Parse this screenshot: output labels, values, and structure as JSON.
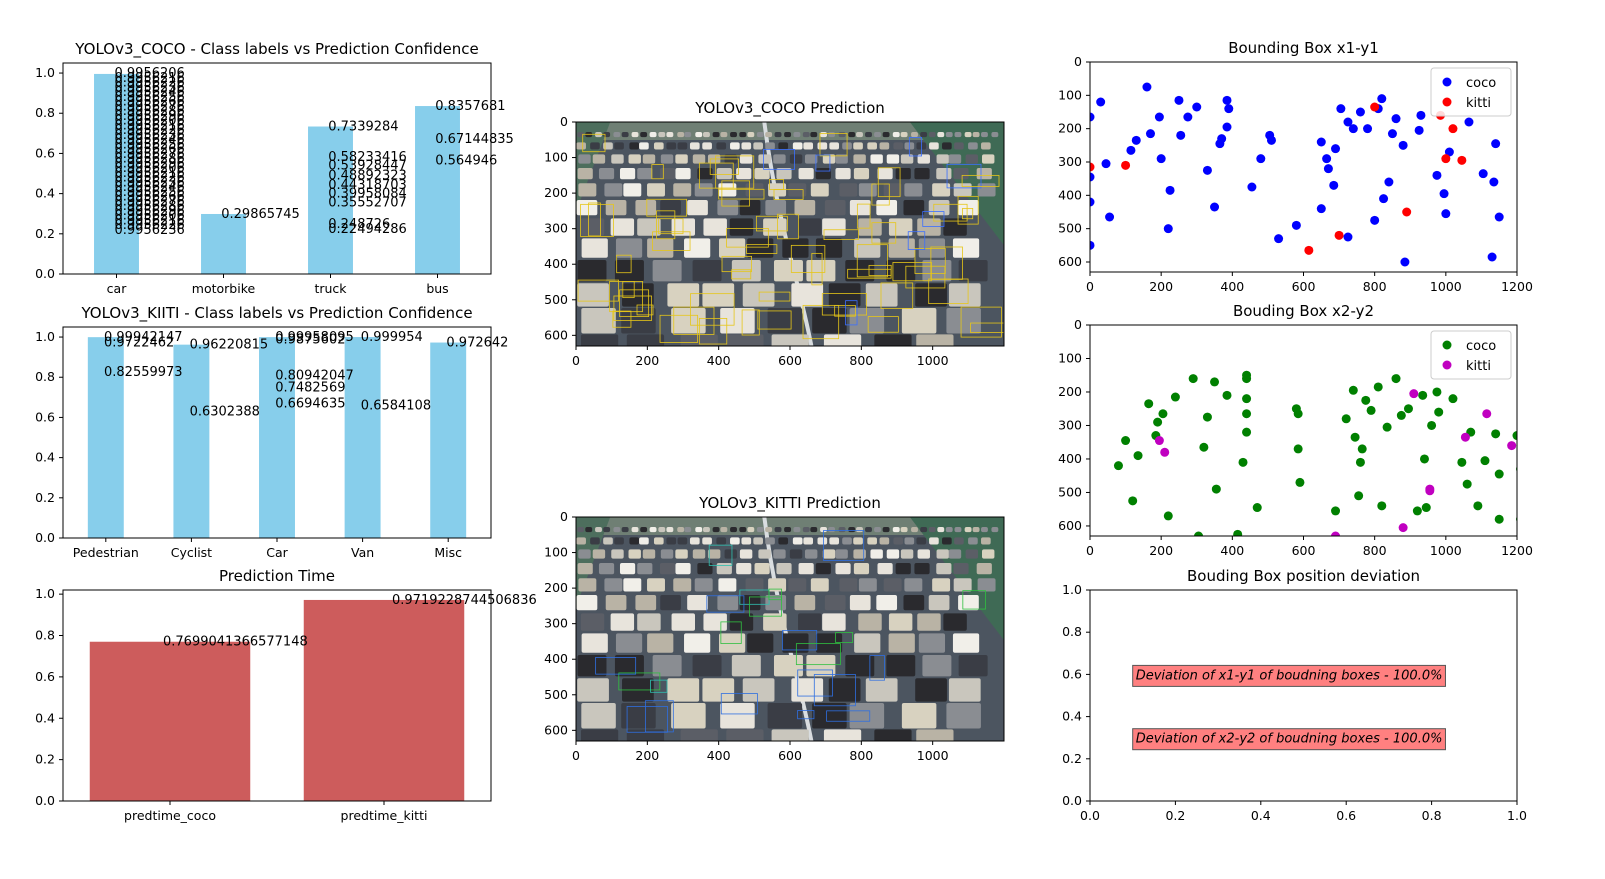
{
  "chart_data": [
    {
      "id": "coco_conf",
      "type": "bar",
      "title": "YOLOv3_COCO - Class labels vs Prediction Confidence",
      "categories": [
        "car",
        "motorbike",
        "truck",
        "bus"
      ],
      "values": [
        0.9956,
        0.29865745,
        0.7339284,
        0.8357681
      ],
      "ylim": [
        0,
        1.05
      ],
      "yticks": [
        "0.0",
        "0.2",
        "0.4",
        "0.6",
        "0.8",
        "1.0"
      ],
      "color": "#87ceeb",
      "data_labels": [
        {
          "category": "truck",
          "text": "0.7339284",
          "y": 0.7339284
        },
        {
          "category": "truck",
          "text": "0.58233416",
          "y": 0.58233416
        },
        {
          "category": "truck",
          "text": "0.53928447",
          "y": 0.53928447
        },
        {
          "category": "truck",
          "text": "0.48892323",
          "y": 0.48892323
        },
        {
          "category": "truck",
          "text": "0.44318703",
          "y": 0.44318703
        },
        {
          "category": "truck",
          "text": "0.39958084",
          "y": 0.39958084
        },
        {
          "category": "truck",
          "text": "0.35552707",
          "y": 0.35552707
        },
        {
          "category": "truck",
          "text": "0.248726",
          "y": 0.248726
        },
        {
          "category": "truck",
          "text": "0.22494286",
          "y": 0.22494286
        },
        {
          "category": "motorbike",
          "text": "0.29865745",
          "y": 0.29865745
        },
        {
          "category": "bus",
          "text": "0.8357681",
          "y": 0.8357681
        },
        {
          "category": "bus",
          "text": "0.67144835",
          "y": 0.67144835
        },
        {
          "category": "bus",
          "text": "0.564946",
          "y": 0.564946
        }
      ],
      "car_label_stack": {
        "values_top": 1.0,
        "values_bottom": 0.22,
        "count": 34
      }
    },
    {
      "id": "kitti_conf",
      "type": "bar",
      "title": "YOLOv3_KIITI - Class labels vs Prediction Confidence",
      "categories": [
        "Pedestrian",
        "Cyclist",
        "Car",
        "Van",
        "Misc"
      ],
      "values": [
        0.99942147,
        0.96220815,
        0.99958095,
        0.999954,
        0.972642
      ],
      "ylim": [
        0,
        1.05
      ],
      "yticks": [
        "0.0",
        "0.2",
        "0.4",
        "0.6",
        "0.8",
        "1.0"
      ],
      "color": "#87ceeb",
      "data_labels": [
        {
          "category": "Pedestrian",
          "text": "0.99942147",
          "y": 0.99942147
        },
        {
          "category": "Pedestrian",
          "text": "0.9722462",
          "y": 0.9722462
        },
        {
          "category": "Pedestrian",
          "text": "0.82559973",
          "y": 0.82559973
        },
        {
          "category": "Cyclist",
          "text": "0.96220815",
          "y": 0.96220815
        },
        {
          "category": "Cyclist",
          "text": "0.6302388",
          "y": 0.6302388
        },
        {
          "category": "Car",
          "text": "0.99958095",
          "y": 0.99958095
        },
        {
          "category": "Car",
          "text": "0.9875602",
          "y": 0.9875602
        },
        {
          "category": "Car",
          "text": "0.80942047",
          "y": 0.80942047
        },
        {
          "category": "Car",
          "text": "0.7482569",
          "y": 0.7482569
        },
        {
          "category": "Car",
          "text": "0.6694635",
          "y": 0.6694635
        },
        {
          "category": "Van",
          "text": "0.999954",
          "y": 0.999954
        },
        {
          "category": "Van",
          "text": "0.6584108",
          "y": 0.6584108
        },
        {
          "category": "Misc",
          "text": "0.972642",
          "y": 0.972642
        }
      ]
    },
    {
      "id": "pred_time",
      "type": "bar",
      "title": "Prediction Time",
      "categories": [
        "predtime_coco",
        "predtime_kitti"
      ],
      "values": [
        0.7699041366577148,
        0.9719228744506836
      ],
      "ylim": [
        0,
        1.02
      ],
      "yticks": [
        "0.0",
        "0.2",
        "0.4",
        "0.6",
        "0.8",
        "1.0"
      ],
      "color": "#cd5c5c",
      "data_labels": [
        {
          "category": "predtime_coco",
          "text": "0.7699041366577148",
          "y": 0.7699041366577148
        },
        {
          "category": "predtime_kitti",
          "text": "0.9719228744506836",
          "y": 0.9719228744506836
        }
      ]
    },
    {
      "id": "coco_image",
      "type": "image",
      "title": "YOLOv3_COCO Prediction",
      "xticks": [
        "0",
        "200",
        "400",
        "600",
        "800",
        "1000"
      ],
      "yticks": [
        "0",
        "100",
        "200",
        "300",
        "400",
        "500",
        "600"
      ],
      "xlim": [
        0,
        1200
      ],
      "ylim": [
        630,
        0
      ],
      "box_color": "#e6c619"
    },
    {
      "id": "kitti_image",
      "type": "image",
      "title": "YOLOv3_KITTI Prediction",
      "xticks": [
        "0",
        "200",
        "400",
        "600",
        "800",
        "1000"
      ],
      "yticks": [
        "0",
        "100",
        "200",
        "300",
        "400",
        "500",
        "600"
      ],
      "xlim": [
        0,
        1200
      ],
      "ylim": [
        630,
        0
      ],
      "box_color": "#2f6fe0"
    },
    {
      "id": "bbox_x1y1",
      "type": "scatter",
      "title": "Bounding Box x1-y1",
      "xlim": [
        0,
        1200
      ],
      "ylim": [
        630,
        0
      ],
      "xticks": [
        "0",
        "200",
        "400",
        "600",
        "800",
        "1000",
        "1200"
      ],
      "yticks": [
        "0",
        "100",
        "200",
        "300",
        "400",
        "500",
        "600"
      ],
      "legend_position": "upper right",
      "series": [
        {
          "name": "coco",
          "color": "#0000ff",
          "points": [
            [
              0,
              165
            ],
            [
              0,
              345
            ],
            [
              0,
              420
            ],
            [
              0,
              550
            ],
            [
              30,
              120
            ],
            [
              45,
              305
            ],
            [
              55,
              465
            ],
            [
              115,
              265
            ],
            [
              130,
              235
            ],
            [
              160,
              75
            ],
            [
              170,
              215
            ],
            [
              195,
              165
            ],
            [
              200,
              290
            ],
            [
              225,
              385
            ],
            [
              220,
              500
            ],
            [
              250,
              115
            ],
            [
              255,
              220
            ],
            [
              275,
              165
            ],
            [
              300,
              135
            ],
            [
              330,
              325
            ],
            [
              350,
              435
            ],
            [
              365,
              245
            ],
            [
              370,
              230
            ],
            [
              385,
              195
            ],
            [
              385,
              115
            ],
            [
              390,
              140
            ],
            [
              455,
              375
            ],
            [
              480,
              290
            ],
            [
              505,
              220
            ],
            [
              510,
              235
            ],
            [
              530,
              530
            ],
            [
              580,
              490
            ],
            [
              650,
              240
            ],
            [
              650,
              440
            ],
            [
              665,
              290
            ],
            [
              670,
              320
            ],
            [
              685,
              370
            ],
            [
              690,
              260
            ],
            [
              705,
              140
            ],
            [
              725,
              180
            ],
            [
              725,
              525
            ],
            [
              740,
              200
            ],
            [
              760,
              150
            ],
            [
              780,
              200
            ],
            [
              800,
              475
            ],
            [
              810,
              140
            ],
            [
              820,
              110
            ],
            [
              825,
              410
            ],
            [
              840,
              360
            ],
            [
              850,
              215
            ],
            [
              860,
              170
            ],
            [
              880,
              250
            ],
            [
              885,
              600
            ],
            [
              925,
              205
            ],
            [
              930,
              160
            ],
            [
              975,
              340
            ],
            [
              995,
              395
            ],
            [
              1000,
              455
            ],
            [
              1010,
              270
            ],
            [
              1065,
              180
            ],
            [
              1105,
              335
            ],
            [
              1130,
              585
            ],
            [
              1135,
              360
            ],
            [
              1140,
              245
            ],
            [
              1150,
              465
            ]
          ]
        },
        {
          "name": "kitti",
          "color": "#ff0000",
          "points": [
            [
              0,
              315
            ],
            [
              100,
              310
            ],
            [
              615,
              565
            ],
            [
              700,
              520
            ],
            [
              800,
              135
            ],
            [
              890,
              450
            ],
            [
              985,
              160
            ],
            [
              1000,
              290
            ],
            [
              1020,
              200
            ],
            [
              1045,
              295
            ]
          ]
        }
      ]
    },
    {
      "id": "bbox_x2y2",
      "type": "scatter",
      "title": "Bouding Box x2-y2",
      "xlim": [
        0,
        1200
      ],
      "ylim": [
        630,
        0
      ],
      "xticks": [
        "0",
        "200",
        "400",
        "600",
        "800",
        "1000",
        "1200"
      ],
      "yticks": [
        "0",
        "100",
        "200",
        "300",
        "400",
        "500",
        "600"
      ],
      "legend_position": "upper right",
      "series": [
        {
          "name": "coco",
          "color": "#008000",
          "points": [
            [
              80,
              420
            ],
            [
              100,
              345
            ],
            [
              120,
              525
            ],
            [
              135,
              390
            ],
            [
              165,
              235
            ],
            [
              185,
              330
            ],
            [
              190,
              290
            ],
            [
              205,
              265
            ],
            [
              220,
              570
            ],
            [
              240,
              215
            ],
            [
              290,
              160
            ],
            [
              305,
              630
            ],
            [
              320,
              365
            ],
            [
              330,
              275
            ],
            [
              350,
              170
            ],
            [
              355,
              490
            ],
            [
              385,
              210
            ],
            [
              415,
              625
            ],
            [
              430,
              410
            ],
            [
              440,
              150
            ],
            [
              440,
              160
            ],
            [
              440,
              220
            ],
            [
              440,
              265
            ],
            [
              440,
              320
            ],
            [
              470,
              545
            ],
            [
              580,
              250
            ],
            [
              585,
              265
            ],
            [
              585,
              370
            ],
            [
              590,
              470
            ],
            [
              690,
              555
            ],
            [
              720,
              280
            ],
            [
              740,
              195
            ],
            [
              745,
              335
            ],
            [
              755,
              510
            ],
            [
              760,
              410
            ],
            [
              765,
              370
            ],
            [
              775,
              225
            ],
            [
              790,
              255
            ],
            [
              810,
              185
            ],
            [
              820,
              540
            ],
            [
              835,
              305
            ],
            [
              860,
              160
            ],
            [
              875,
              270
            ],
            [
              895,
              250
            ],
            [
              920,
              555
            ],
            [
              935,
              210
            ],
            [
              940,
              400
            ],
            [
              945,
              545
            ],
            [
              960,
              300
            ],
            [
              975,
              200
            ],
            [
              980,
              260
            ],
            [
              1020,
              220
            ],
            [
              1045,
              410
            ],
            [
              1060,
              475
            ],
            [
              1070,
              320
            ],
            [
              1090,
              540
            ],
            [
              1110,
              405
            ],
            [
              1140,
              325
            ],
            [
              1150,
              445
            ],
            [
              1150,
              580
            ],
            [
              1200,
              330
            ],
            [
              1210,
              430
            ],
            [
              1210,
              580
            ]
          ]
        },
        {
          "name": "kitti",
          "color": "#c000c0",
          "points": [
            [
              195,
              345
            ],
            [
              210,
              380
            ],
            [
              690,
              630
            ],
            [
              880,
              605
            ],
            [
              910,
              205
            ],
            [
              955,
              495
            ],
            [
              955,
              490
            ],
            [
              1055,
              335
            ],
            [
              1115,
              265
            ],
            [
              1185,
              360
            ]
          ]
        }
      ]
    },
    {
      "id": "bbox_deviation",
      "type": "annotation",
      "title": "Bouding Box position deviation",
      "xlim": [
        0,
        1
      ],
      "ylim": [
        0,
        1
      ],
      "xticks": [
        "0.0",
        "0.2",
        "0.4",
        "0.6",
        "0.8",
        "1.0"
      ],
      "yticks": [
        "0.0",
        "0.2",
        "0.4",
        "0.6",
        "0.8",
        "1.0"
      ],
      "annotations": [
        {
          "text": "Deviation of x1-y1 of boudning boxes - 100.0%",
          "x": 0.1,
          "y": 0.6
        },
        {
          "text": "Deviation of x2-y2 of boudning boxes - 100.0%",
          "x": 0.1,
          "y": 0.3
        }
      ],
      "box_color": "#ff8080"
    }
  ]
}
